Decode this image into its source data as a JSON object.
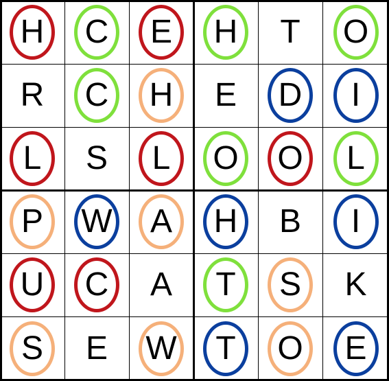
{
  "ring_colors": {
    "red": "#c0161c",
    "green": "#7fe03c",
    "orange": "#f5b07a",
    "blue": "#0b3f9e"
  },
  "grid": [
    [
      {
        "l": "H",
        "c": "red"
      },
      {
        "l": "C",
        "c": "green"
      },
      {
        "l": "E",
        "c": "red"
      },
      {
        "l": "H",
        "c": "green"
      },
      {
        "l": "T",
        "c": null
      },
      {
        "l": "O",
        "c": "green"
      }
    ],
    [
      {
        "l": "R",
        "c": null
      },
      {
        "l": "C",
        "c": "green"
      },
      {
        "l": "H",
        "c": "orange"
      },
      {
        "l": "E",
        "c": null
      },
      {
        "l": "D",
        "c": "blue"
      },
      {
        "l": "I",
        "c": "blue"
      }
    ],
    [
      {
        "l": "L",
        "c": "red"
      },
      {
        "l": "S",
        "c": null
      },
      {
        "l": "L",
        "c": "red"
      },
      {
        "l": "O",
        "c": "green"
      },
      {
        "l": "O",
        "c": "red"
      },
      {
        "l": "L",
        "c": "green"
      }
    ],
    [
      {
        "l": "P",
        "c": "orange"
      },
      {
        "l": "W",
        "c": "blue"
      },
      {
        "l": "A",
        "c": "orange"
      },
      {
        "l": "H",
        "c": "blue"
      },
      {
        "l": "B",
        "c": null
      },
      {
        "l": "I",
        "c": "blue"
      }
    ],
    [
      {
        "l": "U",
        "c": "red"
      },
      {
        "l": "C",
        "c": "red"
      },
      {
        "l": "A",
        "c": null
      },
      {
        "l": "T",
        "c": "green"
      },
      {
        "l": "S",
        "c": "orange"
      },
      {
        "l": "K",
        "c": null
      }
    ],
    [
      {
        "l": "S",
        "c": "orange"
      },
      {
        "l": "E",
        "c": null
      },
      {
        "l": "W",
        "c": "orange"
      },
      {
        "l": "T",
        "c": "blue"
      },
      {
        "l": "O",
        "c": "orange"
      },
      {
        "l": "E",
        "c": "blue"
      }
    ]
  ]
}
